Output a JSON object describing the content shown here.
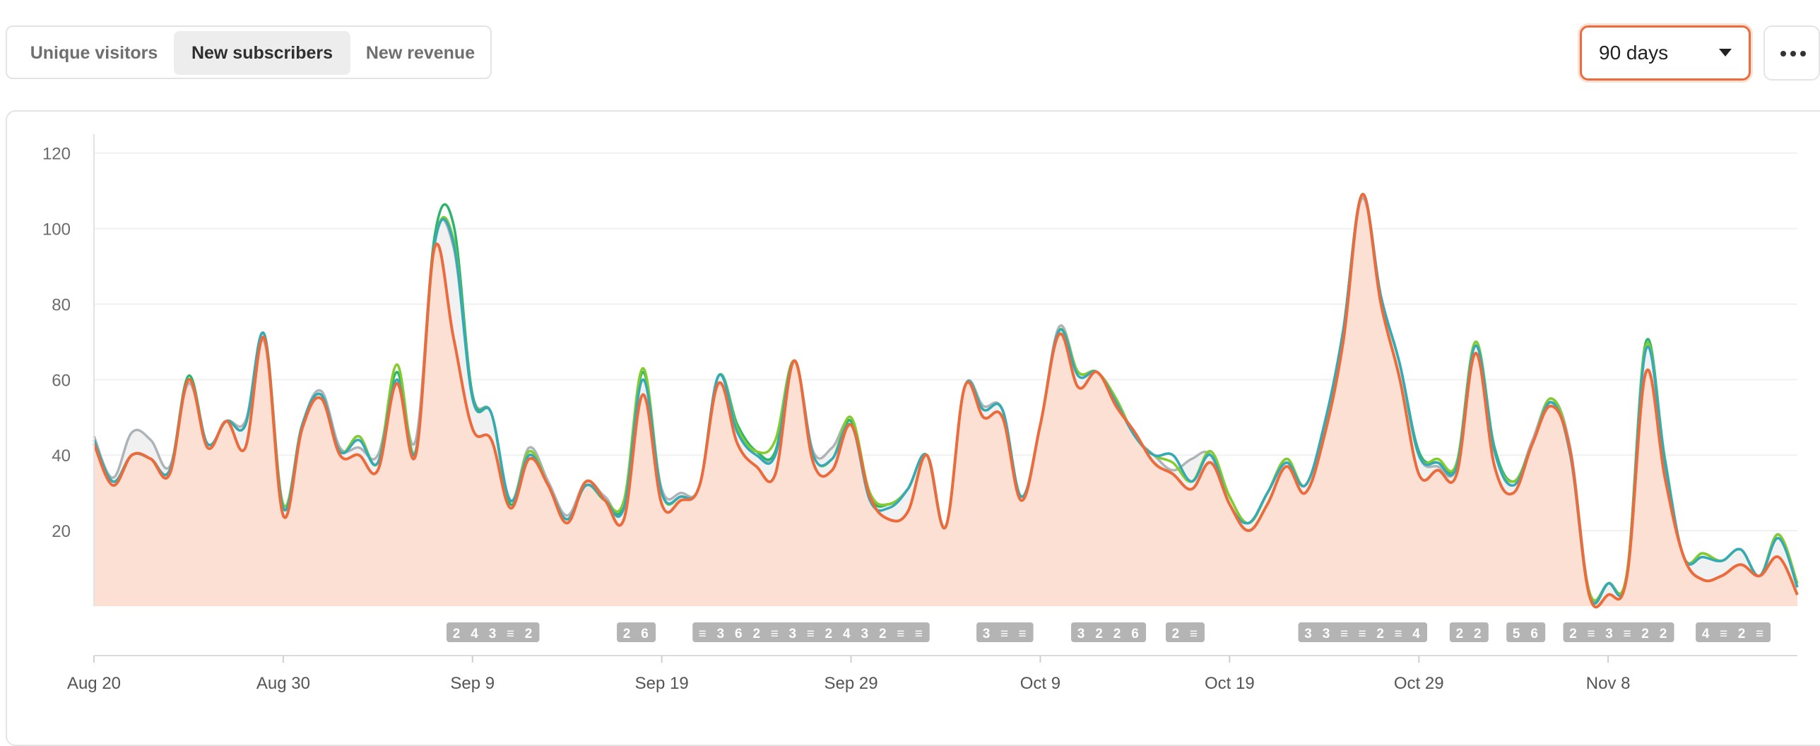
{
  "tabs": [
    {
      "label": "Unique visitors",
      "active": false
    },
    {
      "label": "New subscribers",
      "active": true
    },
    {
      "label": "New revenue",
      "active": false
    }
  ],
  "range_select": {
    "value": "90 days"
  },
  "more_button": {
    "icon": "more-horizontal-icon"
  },
  "colors": {
    "accent": "#ec6b3c",
    "fill": "#fde0d4",
    "green": "#2cb56a",
    "lime": "#82cc2e",
    "teal": "#36a9b8",
    "gray": "#aeb3b8"
  },
  "chart_data": {
    "type": "area",
    "x_ticks": [
      "Aug 20",
      "Aug 30",
      "Sep 9",
      "Sep 19",
      "Sep 29",
      "Oct 9",
      "Oct 19",
      "Oct 29",
      "Nov 8"
    ],
    "y_ticks": [
      20,
      40,
      60,
      80,
      100,
      120
    ],
    "ylim": [
      0,
      125
    ],
    "x_start": "Aug 20",
    "grid": true,
    "series": [
      {
        "color": "#aeb3b8",
        "values": [
          45,
          34,
          46,
          44,
          37,
          59,
          43,
          49,
          49,
          70,
          26,
          48,
          57,
          42,
          42,
          40,
          60,
          44,
          97,
          95,
          56,
          51,
          28,
          42,
          33,
          24,
          33,
          29,
          26,
          60,
          31,
          30,
          32,
          61,
          47,
          40,
          41,
          65,
          41,
          42,
          49,
          30,
          27,
          31,
          40,
          21,
          58,
          53,
          52,
          29,
          48,
          74,
          62,
          62,
          54,
          45,
          40,
          36,
          39,
          40,
          27,
          22,
          30,
          38,
          32,
          48,
          73,
          108,
          82,
          64,
          40,
          37,
          37,
          69,
          41,
          32,
          44,
          55,
          42,
          4,
          6,
          8,
          68,
          38,
          13,
          13,
          12,
          15,
          8,
          18,
          6
        ]
      },
      {
        "color": "#2cb56a",
        "values": [
          44,
          33,
          40,
          39,
          36,
          61,
          43,
          49,
          48,
          72,
          26,
          48,
          56,
          41,
          45,
          38,
          62,
          41,
          98,
          101,
          56,
          51,
          27,
          40,
          32,
          23,
          32,
          28,
          27,
          62,
          30,
          29,
          32,
          61,
          48,
          41,
          41,
          65,
          40,
          39,
          49,
          29,
          27,
          31,
          40,
          21,
          58,
          52,
          52,
          29,
          48,
          73,
          62,
          62,
          55,
          45,
          40,
          40,
          33,
          41,
          29,
          22,
          30,
          39,
          32,
          48,
          73,
          109,
          82,
          64,
          41,
          38,
          38,
          70,
          42,
          33,
          43,
          54,
          41,
          3,
          6,
          9,
          70,
          39,
          13,
          14,
          12,
          15,
          8,
          19,
          5
        ]
      },
      {
        "color": "#82cc2e",
        "values": [
          44,
          33,
          40,
          39,
          36,
          60,
          43,
          49,
          48,
          72,
          27,
          48,
          56,
          41,
          45,
          38,
          64,
          41,
          96,
          97,
          55,
          51,
          28,
          41,
          32,
          23,
          32,
          28,
          28,
          63,
          30,
          29,
          32,
          61,
          47,
          41,
          44,
          65,
          40,
          39,
          50,
          30,
          27,
          31,
          40,
          21,
          58,
          52,
          52,
          29,
          48,
          73,
          62,
          62,
          55,
          45,
          40,
          38,
          33,
          41,
          29,
          22,
          30,
          39,
          32,
          48,
          73,
          109,
          82,
          64,
          40,
          39,
          38,
          70,
          41,
          33,
          43,
          55,
          41,
          4,
          6,
          9,
          69,
          38,
          13,
          14,
          12,
          15,
          8,
          19,
          6
        ]
      },
      {
        "color": "#36a9b8",
        "values": [
          44,
          33,
          40,
          39,
          36,
          60,
          43,
          49,
          48,
          72,
          26,
          48,
          56,
          41,
          44,
          38,
          60,
          41,
          96,
          96,
          55,
          51,
          28,
          40,
          32,
          23,
          32,
          28,
          26,
          60,
          30,
          29,
          32,
          61,
          46,
          40,
          40,
          65,
          40,
          39,
          48,
          28,
          26,
          31,
          40,
          21,
          58,
          52,
          52,
          29,
          48,
          73,
          61,
          62,
          54,
          45,
          40,
          40,
          33,
          40,
          27,
          22,
          30,
          38,
          32,
          48,
          73,
          109,
          82,
          64,
          40,
          38,
          37,
          69,
          41,
          32,
          43,
          54,
          40,
          3,
          6,
          8,
          68,
          38,
          13,
          13,
          12,
          15,
          8,
          18,
          5
        ]
      },
      {
        "color": "#ec6b3c",
        "fill": "#fde0d4",
        "values": [
          43,
          32,
          40,
          39,
          35,
          60,
          42,
          49,
          42,
          71,
          24,
          47,
          55,
          40,
          40,
          36,
          59,
          40,
          95,
          71,
          47,
          44,
          26,
          39,
          32,
          22,
          33,
          28,
          23,
          56,
          27,
          28,
          32,
          59,
          43,
          37,
          35,
          65,
          38,
          36,
          48,
          29,
          23,
          25,
          40,
          21,
          58,
          50,
          50,
          28,
          48,
          72,
          58,
          62,
          53,
          46,
          38,
          35,
          31,
          38,
          27,
          20,
          27,
          37,
          30,
          45,
          70,
          109,
          80,
          60,
          35,
          36,
          35,
          67,
          37,
          30,
          43,
          53,
          41,
          3,
          3,
          8,
          62,
          34,
          13,
          7,
          8,
          11,
          8,
          13,
          3
        ]
      }
    ],
    "annotations": [
      {
        "x": 19,
        "values": [
          "2",
          "4",
          "3",
          "≡",
          "2"
        ]
      },
      {
        "x": 28,
        "values": [
          "2",
          "6"
        ]
      },
      {
        "x": 32,
        "values": [
          "≡",
          "3",
          "6",
          "2",
          "≡",
          "3",
          "≡",
          "2",
          "4",
          "3",
          "2",
          "≡",
          "≡"
        ]
      },
      {
        "x": 47,
        "values": [
          "3",
          "≡",
          "≡"
        ]
      },
      {
        "x": 52,
        "values": [
          "3",
          "2",
          "2",
          "6"
        ]
      },
      {
        "x": 57,
        "values": [
          "2",
          "≡"
        ]
      },
      {
        "x": 64,
        "values": [
          "3",
          "3",
          "≡",
          "≡",
          "2",
          "≡",
          "4"
        ]
      },
      {
        "x": 72,
        "values": [
          "2",
          "2"
        ]
      },
      {
        "x": 75,
        "values": [
          "5",
          "6"
        ]
      },
      {
        "x": 78,
        "values": [
          "2",
          "≡",
          "3",
          "≡",
          "2",
          "2"
        ]
      },
      {
        "x": 85,
        "values": [
          "4",
          "≡",
          "2",
          "≡"
        ]
      }
    ]
  }
}
